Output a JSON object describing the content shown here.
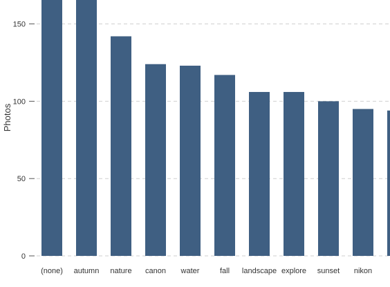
{
  "chart_data": {
    "type": "bar",
    "ylabel": "Photos",
    "categories": [
      "(none)",
      "autumn",
      "nature",
      "canon",
      "water",
      "fall",
      "landscape",
      "explore",
      "sunset",
      "nikon",
      ""
    ],
    "values": [
      170,
      170,
      142,
      124,
      123,
      117,
      106,
      106,
      100,
      95,
      94
    ],
    "y_ticks": [
      0,
      50,
      100,
      150
    ],
    "y_tick_labels": [
      "0",
      "50",
      "100",
      "150"
    ],
    "grid": "horizontal dashed",
    "legend": "none",
    "colors": {
      "bar": "#3f5f82",
      "grid": "#cfcfcf",
      "axis_text": "#333333"
    }
  }
}
